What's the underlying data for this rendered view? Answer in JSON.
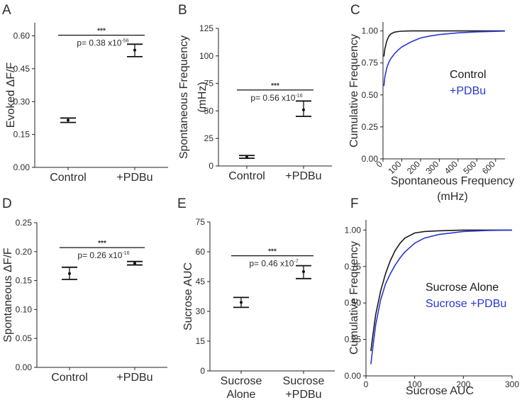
{
  "chart_data": [
    {
      "letter": "A",
      "type": "dot_errorbar",
      "ylabel": "Evoked ΔF/F",
      "categories": [
        "Control",
        "+PDBu"
      ],
      "points": [
        {
          "category": "Control",
          "mean": 0.215,
          "low": 0.205,
          "high": 0.225
        },
        {
          "category": "+PDBu",
          "mean": 0.535,
          "low": 0.505,
          "high": 0.562
        }
      ],
      "ylim": [
        0,
        0.66
      ],
      "yticks": [
        "0.00",
        "0.15",
        "0.30",
        "0.45",
        "0.60"
      ],
      "ytick_values": [
        0,
        0.15,
        0.3,
        0.45,
        0.6
      ],
      "sig": {
        "stars": "***",
        "p_base": "p= 0.38 x10",
        "p_exp": "-56",
        "level": 0.603
      }
    },
    {
      "letter": "B",
      "type": "dot_errorbar",
      "ylabel_lines": [
        "Spontaneous Frequency",
        "(mHz)"
      ],
      "categories": [
        "Control",
        "+PDBu"
      ],
      "points": [
        {
          "category": "Control",
          "mean": 8,
          "low": 7,
          "high": 9.5
        },
        {
          "category": "+PDBu",
          "mean": 51,
          "low": 45,
          "high": 59
        }
      ],
      "ylim": [
        0,
        125
      ],
      "yticks": [
        "0",
        "25",
        "50",
        "75",
        "100",
        "125"
      ],
      "ytick_values": [
        0,
        25,
        50,
        75,
        100,
        125
      ],
      "sig": {
        "stars": "***",
        "p_base": "p= 0.56 x10",
        "p_exp": "-16",
        "level": 69
      }
    },
    {
      "letter": "C",
      "type": "line",
      "ylabel": "Cumulative Frequency",
      "xlabel_lines": [
        "Spontaneous Frequency",
        "(mHz)"
      ],
      "xlim": [
        0,
        650
      ],
      "ylim": [
        0,
        1.07
      ],
      "xticks": [
        "0",
        "100",
        "200",
        "300",
        "400",
        "500",
        "600"
      ],
      "xtick_values": [
        0,
        100,
        200,
        300,
        400,
        500,
        600
      ],
      "yticks": [
        "0.00",
        "0.25",
        "0.50",
        "0.75",
        "1.00"
      ],
      "ytick_values": [
        0,
        0.25,
        0.5,
        0.75,
        1.0
      ],
      "series": [
        {
          "name": "Control",
          "color": "#1a1a1a",
          "x": [
            5,
            10,
            20,
            30,
            40,
            60,
            80,
            100,
            150,
            200,
            650
          ],
          "y": [
            0.8,
            0.86,
            0.92,
            0.955,
            0.975,
            0.99,
            0.995,
            0.998,
            1.0,
            1.0,
            1.0
          ]
        },
        {
          "name": "+PDBu",
          "color": "#2a36d0",
          "x": [
            5,
            10,
            20,
            30,
            40,
            60,
            80,
            100,
            150,
            200,
            250,
            300,
            400,
            500,
            600,
            650
          ],
          "y": [
            0.57,
            0.64,
            0.71,
            0.75,
            0.78,
            0.82,
            0.85,
            0.875,
            0.915,
            0.945,
            0.96,
            0.972,
            0.985,
            0.993,
            0.997,
            0.999
          ]
        }
      ]
    },
    {
      "letter": "D",
      "type": "dot_errorbar",
      "ylabel": "Spontaneous ΔF/F",
      "categories": [
        "Control",
        "+PDBu"
      ],
      "points": [
        {
          "category": "Control",
          "mean": 0.162,
          "low": 0.152,
          "high": 0.173
        },
        {
          "category": "+PDBu",
          "mean": 0.18,
          "low": 0.177,
          "high": 0.183
        }
      ],
      "ylim": [
        0,
        0.25
      ],
      "yticks": [
        "0.00",
        "0.05",
        "0.10",
        "0.15",
        "0.20",
        "0.25"
      ],
      "ytick_values": [
        0,
        0.05,
        0.1,
        0.15,
        0.2,
        0.25
      ],
      "sig": {
        "stars": "***",
        "p_base": "p= 0.26 x10",
        "p_exp": "-16",
        "level": 0.207
      }
    },
    {
      "letter": "E",
      "type": "dot_errorbar",
      "ylabel": "Sucrose AUC",
      "categories": [
        "Sucrose Alone",
        "Sucrose +PDBu"
      ],
      "category_lines": [
        [
          "Sucrose",
          "Alone"
        ],
        [
          "Sucrose",
          "+PDBu"
        ]
      ],
      "points": [
        {
          "category": "Sucrose Alone",
          "mean": 34.5,
          "low": 32,
          "high": 37
        },
        {
          "category": "Sucrose +PDBu",
          "mean": 50,
          "low": 46.5,
          "high": 53
        }
      ],
      "ylim": [
        0,
        75
      ],
      "yticks": [
        "0",
        "15",
        "30",
        "45",
        "60",
        "75"
      ],
      "ytick_values": [
        0,
        15,
        30,
        45,
        60,
        75
      ],
      "sig": {
        "stars": "***",
        "p_base": "p= 0.46 x10",
        "p_exp": "-7",
        "level": 58
      }
    },
    {
      "letter": "F",
      "type": "line",
      "ylabel": "Cumulative Frequency",
      "xlabel": "Sucrose AUC",
      "xlim": [
        0,
        300
      ],
      "ylim": [
        0,
        1.07
      ],
      "xticks": [
        "0",
        "100",
        "200",
        "300"
      ],
      "xtick_values": [
        0,
        100,
        200,
        300
      ],
      "yticks": [
        "0.00",
        "0.25",
        "0.50",
        "0.75",
        "1.00"
      ],
      "ytick_values": [
        0,
        0.25,
        0.5,
        0.75,
        1.0
      ],
      "series": [
        {
          "name": "Sucrose Alone",
          "color": "#1a1a1a",
          "x": [
            10,
            15,
            20,
            30,
            40,
            50,
            60,
            70,
            80,
            100,
            120,
            150,
            200,
            250,
            300
          ],
          "y": [
            0.17,
            0.3,
            0.42,
            0.58,
            0.7,
            0.79,
            0.86,
            0.91,
            0.945,
            0.98,
            0.99,
            0.995,
            1.0,
            1.0,
            1.0
          ]
        },
        {
          "name": "Sucrose +PDBu",
          "color": "#2a36d0",
          "x": [
            10,
            15,
            20,
            30,
            40,
            50,
            60,
            70,
            80,
            100,
            120,
            150,
            200,
            250,
            300
          ],
          "y": [
            0.08,
            0.22,
            0.35,
            0.52,
            0.63,
            0.7,
            0.76,
            0.81,
            0.85,
            0.91,
            0.945,
            0.97,
            0.99,
            0.997,
            1.0
          ]
        }
      ]
    }
  ]
}
